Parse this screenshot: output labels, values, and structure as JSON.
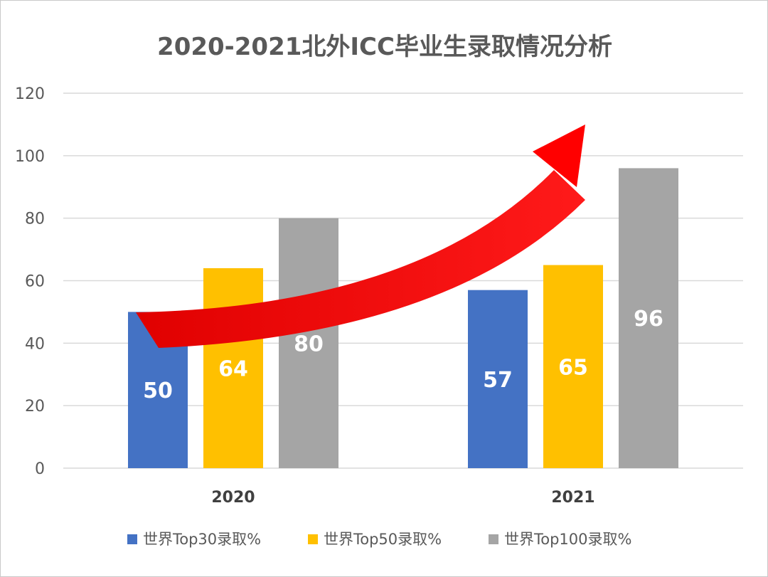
{
  "chart_data": {
    "type": "bar",
    "title": "2020-2021北外ICC毕业生录取情况分析",
    "categories": [
      "2020",
      "2021"
    ],
    "series": [
      {
        "name": "世界Top30录取%",
        "values": [
          50,
          57
        ],
        "color": "#4472C4"
      },
      {
        "name": "世界Top50录取%",
        "values": [
          64,
          65
        ],
        "color": "#FFC000"
      },
      {
        "name": "世界Top100录取%",
        "values": [
          80,
          96
        ],
        "color": "#A5A5A5"
      }
    ],
    "ylim": [
      0,
      120
    ],
    "yticks": [
      0,
      20,
      40,
      60,
      80,
      100,
      120
    ],
    "grid": true,
    "legend": "bottom",
    "annotation": {
      "type": "arrow",
      "color": "#FF0000",
      "meaning": "upward trend"
    }
  }
}
